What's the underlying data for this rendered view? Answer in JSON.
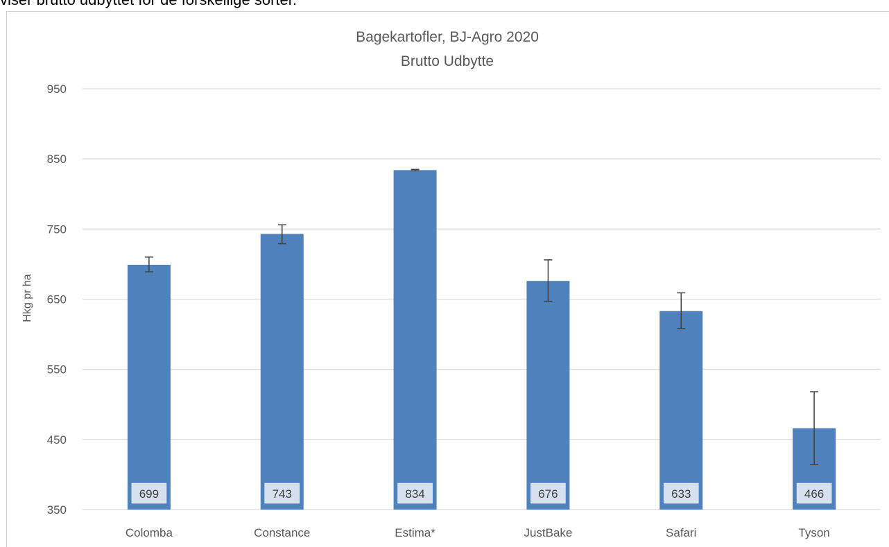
{
  "caption": "viser brutto udbyttet for de forskellige sorter.",
  "chart_data": {
    "type": "bar",
    "title": "Bagekartofler, BJ-Agro 2020",
    "subtitle": "Brutto Udbytte",
    "xlabel": "",
    "ylabel": "Hkg pr ha",
    "ylim": [
      350,
      950
    ],
    "yticks": [
      350,
      450,
      550,
      650,
      750,
      850,
      950
    ],
    "grid": true,
    "categories": [
      "Colomba",
      "Constance",
      "Estima*",
      "JustBake",
      "Safari",
      "Tyson"
    ],
    "values": [
      699,
      743,
      834,
      676,
      633,
      466
    ],
    "data_labels": [
      "699",
      "743",
      "834",
      "676",
      "633",
      "466"
    ],
    "error_low": [
      689,
      729,
      833,
      647,
      608,
      414
    ],
    "error_high": [
      710,
      756,
      835,
      706,
      659,
      518
    ],
    "colors": {
      "bar": "#4f81bd",
      "grid": "#d9d9d9",
      "axis_text": "#595959",
      "error_bar": "#404040",
      "label_bg": "#d6e0ee"
    }
  }
}
